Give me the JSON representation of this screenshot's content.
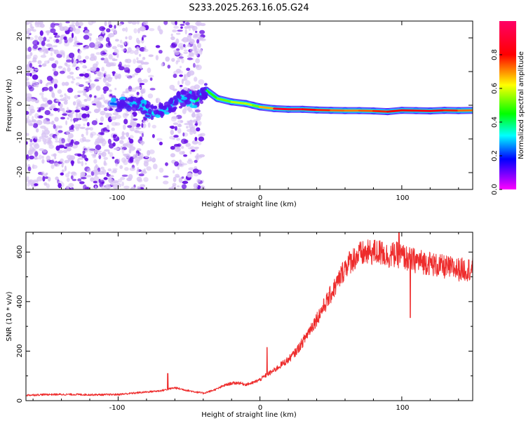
{
  "title": "S233.2025.263.16.05.G24",
  "colors": {
    "noise_light": "#d7c2f3",
    "noise_dark": "#6a12e6",
    "snr_line": "#ee2c2c",
    "frame": "#000000"
  },
  "chart_data": [
    {
      "type": "heatmap",
      "name": "spectrogram",
      "title": "S233.2025.263.16.05.G24",
      "xlabel": "Height of straight line (km)",
      "ylabel": "Frequency (Hz)",
      "xlim": [
        -165,
        150
      ],
      "ylim": [
        -25,
        25
      ],
      "xticks": [
        -100,
        0,
        100
      ],
      "yticks": [
        -20,
        -10,
        0,
        10,
        20
      ],
      "xtick_labels": [
        "-100",
        "0",
        "100"
      ],
      "ytick_labels": [
        "-20",
        "-10",
        "0",
        "10",
        "20"
      ],
      "noise_region_x": [
        -165,
        -40
      ],
      "noise_gap_x": [
        -80,
        -62
      ],
      "tone_track": {
        "x": [
          -105,
          -95,
          -85,
          -75,
          -65,
          -55,
          -45,
          -38,
          -30,
          -20,
          -10,
          -5,
          0,
          10,
          20,
          30,
          40,
          50,
          60,
          70,
          80,
          90,
          100,
          110,
          120,
          130,
          140,
          150
        ],
        "freq": [
          0.5,
          0.0,
          0.5,
          -2.5,
          -1.0,
          2.5,
          1.0,
          4.5,
          2.0,
          1.0,
          0.5,
          0.0,
          -0.5,
          -1.0,
          -1.2,
          -1.2,
          -1.4,
          -1.5,
          -1.6,
          -1.6,
          -1.7,
          -1.9,
          -1.5,
          -1.6,
          -1.7,
          -1.5,
          -1.6,
          -1.5
        ],
        "amplitude": [
          0.2,
          0.25,
          0.3,
          0.35,
          0.3,
          0.3,
          0.35,
          0.45,
          0.5,
          0.55,
          0.6,
          0.55,
          0.5,
          0.85,
          0.9,
          0.85,
          0.8,
          0.75,
          0.7,
          0.72,
          0.75,
          0.8,
          0.8,
          0.8,
          0.85,
          0.8,
          0.75,
          0.7
        ]
      },
      "colorbar": {
        "label": "Normalized spectral amplitude",
        "range": [
          0.0,
          1.0
        ],
        "ticks": [
          0.0,
          0.2,
          0.4,
          0.6,
          0.8
        ],
        "tick_labels": [
          "0.0",
          "0.2",
          "0.4",
          "0.6",
          "0.8"
        ]
      }
    },
    {
      "type": "line",
      "name": "snr",
      "title": "",
      "xlabel": "Height of straight line (km)",
      "ylabel": "SNR (10 * v/v)",
      "xlim": [
        -165,
        150
      ],
      "ylim": [
        0,
        680
      ],
      "xticks": [
        -100,
        0,
        100
      ],
      "yticks": [
        0,
        200,
        400,
        600
      ],
      "xtick_labels": [
        "-100",
        "0",
        "100"
      ],
      "ytick_labels": [
        "0",
        "200",
        "400",
        "600"
      ],
      "series": [
        {
          "name": "SNR",
          "x": [
            -165,
            -150,
            -140,
            -130,
            -120,
            -110,
            -100,
            -90,
            -80,
            -70,
            -60,
            -50,
            -45,
            -40,
            -35,
            -30,
            -25,
            -20,
            -15,
            -10,
            -5,
            0,
            5,
            10,
            15,
            20,
            25,
            30,
            35,
            40,
            45,
            50,
            55,
            60,
            65,
            70,
            75,
            80,
            85,
            90,
            95,
            100,
            105,
            110,
            115,
            120,
            125,
            130,
            135,
            140,
            145,
            150
          ],
          "values": [
            22,
            25,
            25,
            25,
            24,
            24,
            25,
            30,
            35,
            40,
            52,
            40,
            35,
            30,
            38,
            48,
            62,
            70,
            72,
            65,
            72,
            85,
            105,
            122,
            145,
            165,
            195,
            235,
            285,
            330,
            380,
            430,
            480,
            540,
            570,
            590,
            595,
            600,
            598,
            585,
            590,
            585,
            570,
            565,
            560,
            555,
            545,
            540,
            535,
            530,
            530,
            532
          ],
          "spikes": [
            {
              "x": -65,
              "value": 110
            },
            {
              "x": 5,
              "value": 215
            },
            {
              "x": 86,
              "value": 640
            },
            {
              "x": 98,
              "value": 680
            },
            {
              "x": 106,
              "value": 335
            }
          ]
        }
      ]
    }
  ]
}
